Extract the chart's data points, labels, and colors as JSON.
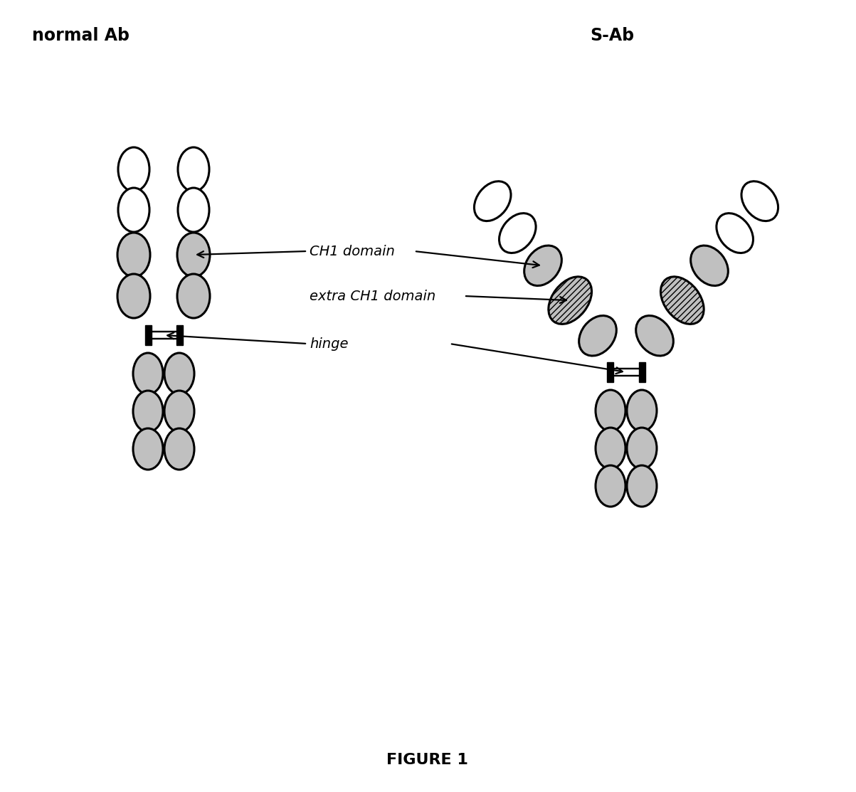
{
  "title_left": "normal Ab",
  "title_right": "S-Ab",
  "figure_label": "FIGURE 1",
  "label_ch1": "CH1 domain",
  "label_extra_ch1": "extra CH1 domain",
  "label_hinge": "hinge",
  "bg_color": "#ffffff",
  "text_color": "#000000",
  "lw": 2.2,
  "gray": "#c0c0c0",
  "white": "#ffffff",
  "black": "#000000"
}
